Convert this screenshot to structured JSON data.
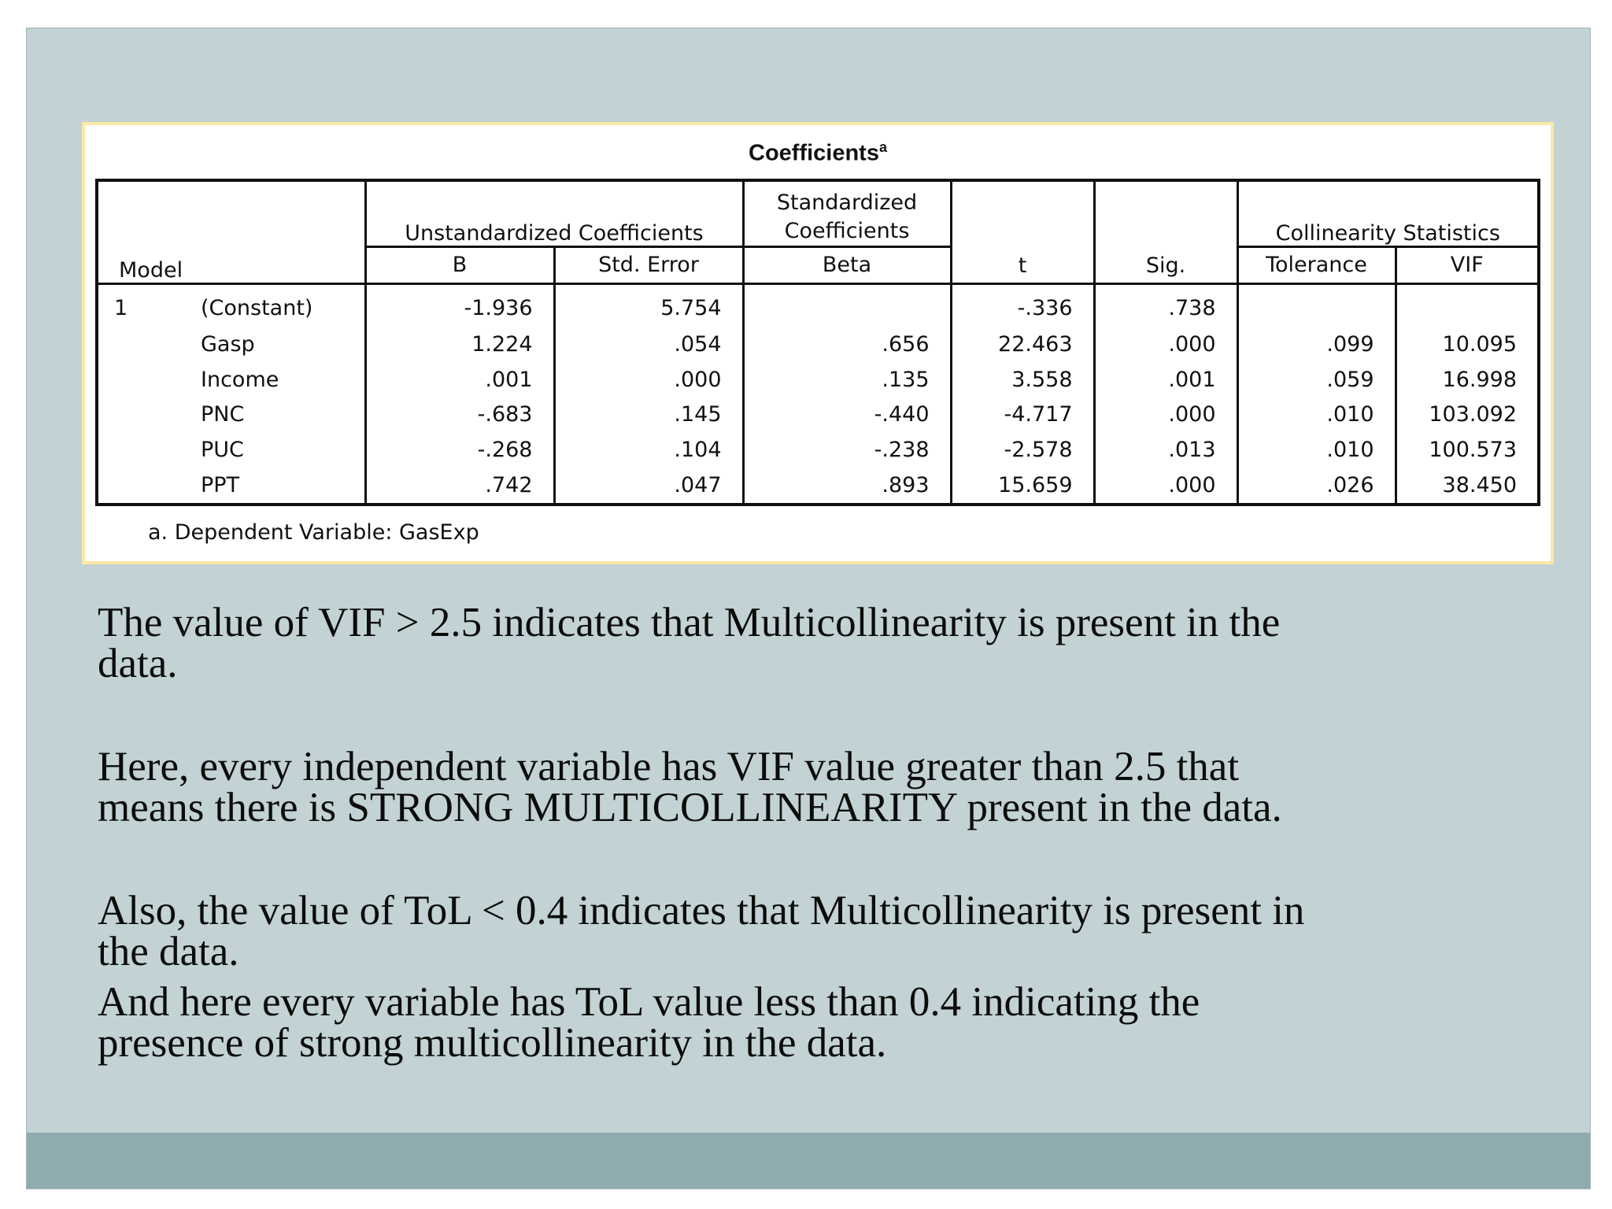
{
  "table": {
    "title": "Coefficients",
    "title_superscript": "a",
    "group_headers": {
      "unstandardized": "Unstandardized Coefficients",
      "standardized": "Standardized Coefficients",
      "collinearity": "Collinearity Statistics"
    },
    "columns": {
      "model": "Model",
      "b": "B",
      "std_error": "Std. Error",
      "beta": "Beta",
      "t": "t",
      "sig": "Sig.",
      "tolerance": "Tolerance",
      "vif": "VIF"
    },
    "model_number": "1",
    "rows": [
      {
        "variable": "(Constant)",
        "b": "-1.936",
        "std_error": "5.754",
        "beta": "",
        "t": "-.336",
        "sig": ".738",
        "tolerance": "",
        "vif": ""
      },
      {
        "variable": "Gasp",
        "b": "1.224",
        "std_error": ".054",
        "beta": ".656",
        "t": "22.463",
        "sig": ".000",
        "tolerance": ".099",
        "vif": "10.095"
      },
      {
        "variable": "Income",
        "b": ".001",
        "std_error": ".000",
        "beta": ".135",
        "t": "3.558",
        "sig": ".001",
        "tolerance": ".059",
        "vif": "16.998"
      },
      {
        "variable": "PNC",
        "b": "-.683",
        "std_error": ".145",
        "beta": "-.440",
        "t": "-4.717",
        "sig": ".000",
        "tolerance": ".010",
        "vif": "103.092"
      },
      {
        "variable": "PUC",
        "b": "-.268",
        "std_error": ".104",
        "beta": "-.238",
        "t": "-2.578",
        "sig": ".013",
        "tolerance": ".010",
        "vif": "100.573"
      },
      {
        "variable": "PPT",
        "b": ".742",
        "std_error": ".047",
        "beta": ".893",
        "t": "15.659",
        "sig": ".000",
        "tolerance": ".026",
        "vif": "38.450"
      }
    ],
    "footnote": "a. Dependent Variable: GasExp"
  },
  "paragraphs": [
    {
      "line1": "The value of VIF > 2.5 indicates that Multicollinearity is present in the",
      "line2": "data."
    },
    {
      "line1": "Here, every independent variable has VIF value greater than 2.5 that",
      "line2": "means there is STRONG MULTICOLLINEARITY present in the data."
    },
    {
      "line1": "Also, the value of ToL < 0.4 indicates that Multicollinearity is present in",
      "line2": "the data."
    },
    {
      "line1": "And here every variable has ToL value less than 0.4 indicating the",
      "line2": "presence of strong multicollinearity in the data."
    }
  ],
  "colors": {
    "slide_background": "#c3d2d4",
    "footer_band": "#8eacb0",
    "table_frame_border": "#f9e9a3"
  }
}
